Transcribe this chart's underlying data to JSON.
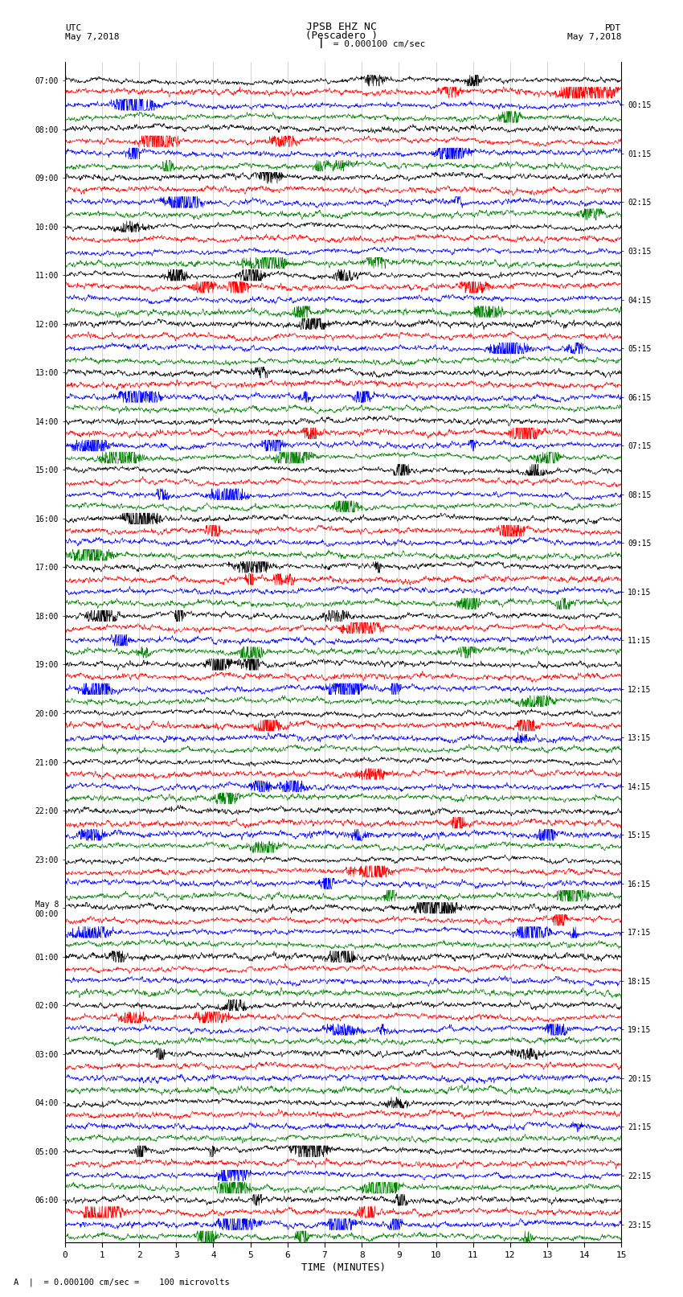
{
  "title_line1": "JPSB EHZ NC",
  "title_line2": "(Pescadero )",
  "scale_label": "= 0.000100 cm/sec",
  "utc_label": "UTC",
  "utc_date": "May 7,2018",
  "pdt_label": "PDT",
  "pdt_date": "May 7,2018",
  "xlabel": "TIME (MINUTES)",
  "bottom_label": "= 0.000100 cm/sec =    100 microvolts",
  "left_times": [
    "07:00",
    "08:00",
    "09:00",
    "10:00",
    "11:00",
    "12:00",
    "13:00",
    "14:00",
    "15:00",
    "16:00",
    "17:00",
    "18:00",
    "19:00",
    "20:00",
    "21:00",
    "22:00",
    "23:00",
    "May 8\n00:00",
    "01:00",
    "02:00",
    "03:00",
    "04:00",
    "05:00",
    "06:00"
  ],
  "right_times": [
    "00:15",
    "01:15",
    "02:15",
    "03:15",
    "04:15",
    "05:15",
    "06:15",
    "07:15",
    "08:15",
    "09:15",
    "10:15",
    "11:15",
    "12:15",
    "13:15",
    "14:15",
    "15:15",
    "16:15",
    "17:15",
    "18:15",
    "19:15",
    "20:15",
    "21:15",
    "22:15",
    "23:15"
  ],
  "colors": [
    "black",
    "red",
    "blue",
    "green"
  ],
  "n_hours": 24,
  "n_sub_rows": 4,
  "xmin": 0,
  "xmax": 15,
  "bg_color": "#ffffff",
  "grid_color": "#aaaaaa",
  "fig_width": 8.5,
  "fig_height": 16.13,
  "dpi": 100,
  "seed": 42
}
